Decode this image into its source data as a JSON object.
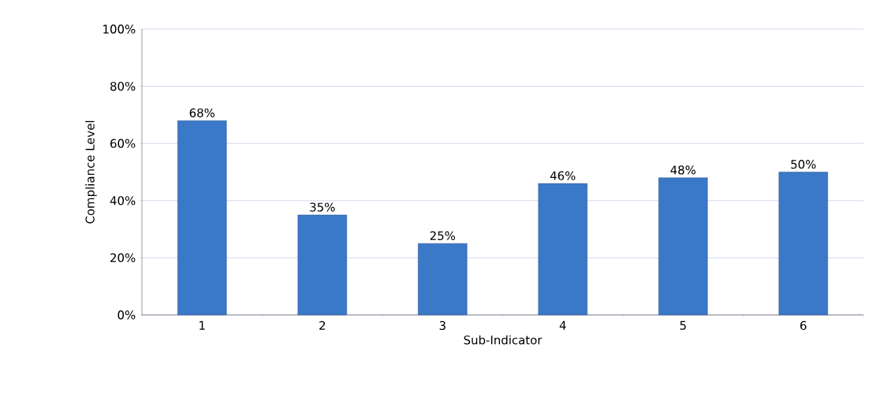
{
  "chart_data": {
    "type": "bar",
    "categories": [
      "1",
      "2",
      "3",
      "4",
      "5",
      "6"
    ],
    "values": [
      68,
      35,
      25,
      46,
      48,
      50
    ],
    "value_labels": [
      "68%",
      "35%",
      "25%",
      "46%",
      "48%",
      "50%"
    ],
    "color": "#3a78c8",
    "xlabel": "Sub-Indicator",
    "ylabel": "Compliance Level",
    "ylim": [
      0,
      100
    ],
    "yticks": [
      {
        "value": 0,
        "label": "0%"
      },
      {
        "value": 20,
        "label": "20%"
      },
      {
        "value": 40,
        "label": "40%"
      },
      {
        "value": 60,
        "label": "60%"
      },
      {
        "value": 80,
        "label": "80%"
      },
      {
        "value": 100,
        "label": "100%"
      }
    ],
    "grid": "y"
  }
}
